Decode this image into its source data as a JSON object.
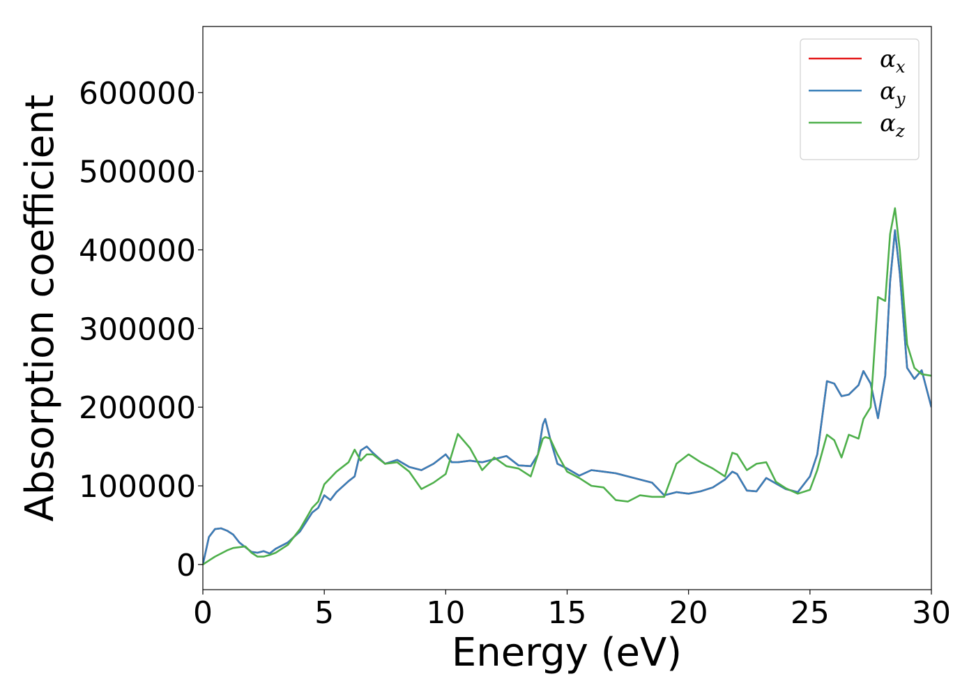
{
  "chart_data": {
    "type": "line",
    "xlabel": "Energy (eV)",
    "ylabel": "Absorption coefficient",
    "x": [
      0,
      0.25,
      0.5,
      0.75,
      1,
      1.25,
      1.5,
      1.75,
      2,
      2.25,
      2.5,
      2.75,
      3,
      3.5,
      4,
      4.5,
      4.75,
      5,
      5.25,
      5.5,
      6,
      6.25,
      6.5,
      6.75,
      7,
      7.5,
      8,
      8.5,
      9,
      9.5,
      10,
      10.25,
      10.5,
      11,
      11.5,
      12,
      12.5,
      13,
      13.5,
      13.8,
      14,
      14.1,
      14.3,
      14.6,
      15,
      15.5,
      16,
      16.5,
      17,
      17.5,
      18,
      18.5,
      19,
      19.5,
      20,
      20.5,
      21,
      21.5,
      21.8,
      22,
      22.4,
      22.8,
      23.2,
      23.6,
      24,
      24.5,
      25,
      25.3,
      25.7,
      26,
      26.3,
      26.6,
      27,
      27.2,
      27.5,
      27.8,
      28.1,
      28.3,
      28.5,
      28.7,
      29,
      29.3,
      29.6,
      30
    ],
    "series": [
      {
        "name": "αx",
        "color": "#e41a1c",
        "values": [
          0,
          35000,
          45000,
          46000,
          43000,
          38000,
          28000,
          22000,
          16000,
          15000,
          17000,
          14000,
          20000,
          28000,
          42000,
          66000,
          72000,
          88000,
          82000,
          92000,
          106000,
          112000,
          145000,
          150000,
          142000,
          128000,
          133000,
          124000,
          120000,
          128000,
          140000,
          130000,
          130000,
          132000,
          130000,
          134000,
          138000,
          126000,
          125000,
          140000,
          178000,
          185000,
          160000,
          128000,
          122000,
          113000,
          120000,
          118000,
          116000,
          112000,
          108000,
          104000,
          88000,
          92000,
          90000,
          93000,
          98000,
          108000,
          118000,
          115000,
          94000,
          93000,
          110000,
          103000,
          96000,
          92000,
          112000,
          140000,
          233000,
          230000,
          214000,
          216000,
          228000,
          246000,
          230000,
          186000,
          240000,
          360000,
          425000,
          370000,
          250000,
          236000,
          247000,
          200000
        ]
      },
      {
        "name": "αy",
        "color": "#377eb8",
        "values": [
          0,
          35000,
          45000,
          46000,
          43000,
          38000,
          28000,
          22000,
          16000,
          15000,
          17000,
          14000,
          20000,
          28000,
          42000,
          66000,
          72000,
          88000,
          82000,
          92000,
          106000,
          112000,
          145000,
          150000,
          142000,
          128000,
          133000,
          124000,
          120000,
          128000,
          140000,
          130000,
          130000,
          132000,
          130000,
          134000,
          138000,
          126000,
          125000,
          140000,
          178000,
          185000,
          160000,
          128000,
          122000,
          113000,
          120000,
          118000,
          116000,
          112000,
          108000,
          104000,
          88000,
          92000,
          90000,
          93000,
          98000,
          108000,
          118000,
          115000,
          94000,
          93000,
          110000,
          103000,
          96000,
          92000,
          112000,
          140000,
          233000,
          230000,
          214000,
          216000,
          228000,
          246000,
          230000,
          186000,
          240000,
          360000,
          425000,
          370000,
          250000,
          236000,
          247000,
          200000
        ]
      },
      {
        "name": "αz",
        "color": "#4daf4a",
        "values": [
          0,
          5000,
          10000,
          14000,
          18000,
          21000,
          22000,
          23000,
          15000,
          10000,
          10000,
          12000,
          15000,
          25000,
          45000,
          72000,
          80000,
          102000,
          110000,
          118000,
          130000,
          146000,
          132000,
          140000,
          140000,
          128000,
          130000,
          118000,
          96000,
          104000,
          115000,
          140000,
          166000,
          148000,
          120000,
          136000,
          125000,
          122000,
          112000,
          140000,
          160000,
          162000,
          160000,
          140000,
          118000,
          110000,
          100000,
          98000,
          82000,
          80000,
          88000,
          86000,
          86000,
          128000,
          140000,
          130000,
          122000,
          112000,
          142000,
          140000,
          120000,
          128000,
          130000,
          105000,
          97000,
          90000,
          95000,
          120000,
          165000,
          158000,
          136000,
          165000,
          160000,
          185000,
          200000,
          340000,
          335000,
          420000,
          453000,
          400000,
          280000,
          250000,
          242000,
          240000
        ]
      }
    ],
    "xlim": [
      0,
      30
    ],
    "xticks": [
      0,
      5,
      10,
      15,
      20,
      25,
      30
    ],
    "ylim": [
      -32000,
      684000
    ],
    "yticks": [
      0,
      100000,
      200000,
      300000,
      400000,
      500000,
      600000
    ],
    "legend": "upper right"
  }
}
